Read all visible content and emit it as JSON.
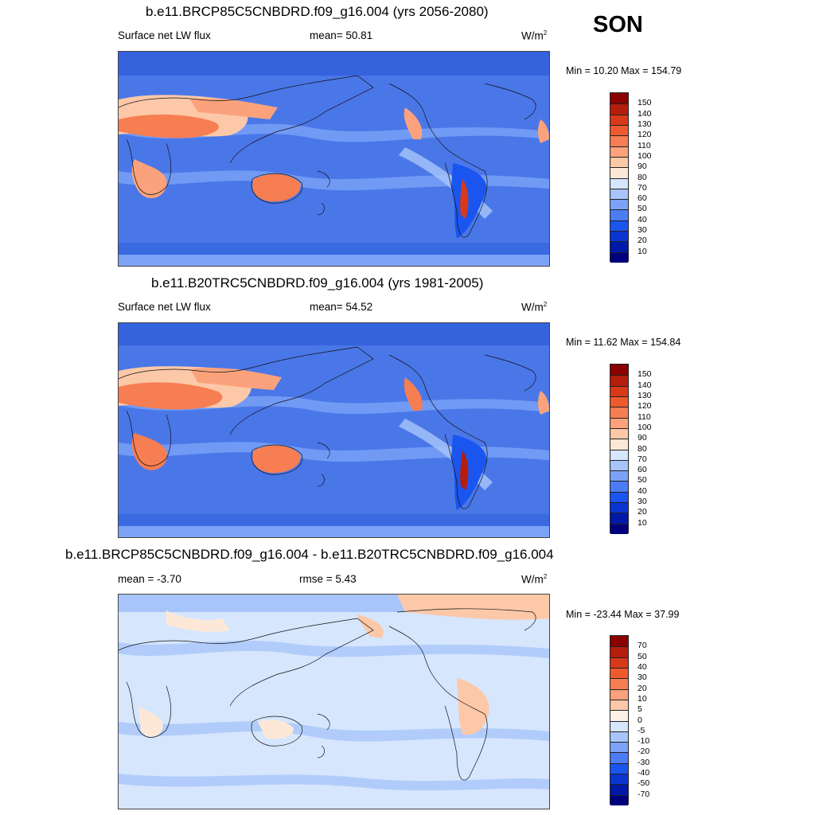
{
  "season": "SON",
  "panels": [
    {
      "title": "b.e11.BRCP85C5CNBDRD.f09_g16.004 (yrs 2056-2080)",
      "left_label": "Surface net LW flux",
      "mid_label": "mean=  50.81",
      "units_base": "W/m",
      "units_sup": "2",
      "minmax": "Min =  10.20 Max = 154.79",
      "colorbar": {
        "colors": [
          "#00007f",
          "#0019a8",
          "#0a35d1",
          "#1a55f0",
          "#4c7cf5",
          "#7ba2f7",
          "#a7c5fa",
          "#d6e6fd",
          "#fde8d8",
          "#fcc8a8",
          "#fba27c",
          "#f77d52",
          "#ee5a2e",
          "#d8391a",
          "#b51d0d",
          "#8b0000"
        ],
        "labels": [
          "10",
          "20",
          "30",
          "40",
          "50",
          "60",
          "70",
          "80",
          "90",
          "100",
          "110",
          "120",
          "130",
          "140",
          "150"
        ]
      }
    },
    {
      "title": "b.e11.B20TRC5CNBDRD.f09_g16.004 (yrs 1981-2005)",
      "left_label": "Surface net LW flux",
      "mid_label": "mean=  54.52",
      "units_base": "W/m",
      "units_sup": "2",
      "minmax": "Min =  11.62 Max = 154.84",
      "colorbar": {
        "colors": [
          "#00007f",
          "#0019a8",
          "#0a35d1",
          "#1a55f0",
          "#4c7cf5",
          "#7ba2f7",
          "#a7c5fa",
          "#d6e6fd",
          "#fde8d8",
          "#fcc8a8",
          "#fba27c",
          "#f77d52",
          "#ee5a2e",
          "#d8391a",
          "#b51d0d",
          "#8b0000"
        ],
        "labels": [
          "10",
          "20",
          "30",
          "40",
          "50",
          "60",
          "70",
          "80",
          "90",
          "100",
          "110",
          "120",
          "130",
          "140",
          "150"
        ]
      }
    },
    {
      "title": "b.e11.BRCP85C5CNBDRD.f09_g16.004 - b.e11.B20TRC5CNBDRD.f09_g16.004",
      "left_label": "mean =  -3.70",
      "mid_label": "rmse =   5.43",
      "units_base": "W/m",
      "units_sup": "2",
      "minmax": "Min = -23.44 Max =  37.99",
      "colorbar": {
        "colors": [
          "#00007f",
          "#0019a8",
          "#0a35d1",
          "#1a55f0",
          "#4c7cf5",
          "#7ba2f7",
          "#a7c5fa",
          "#d6e6fd",
          "#fdf0e6",
          "#fcc8a8",
          "#fba27c",
          "#f77d52",
          "#ee5a2e",
          "#d8391a",
          "#b51d0d",
          "#8b0000"
        ],
        "labels": [
          "-70",
          "-50",
          "-40",
          "-30",
          "-20",
          "-10",
          "-5",
          "0",
          "5",
          "10",
          "20",
          "30",
          "40",
          "50",
          "70"
        ]
      }
    }
  ]
}
